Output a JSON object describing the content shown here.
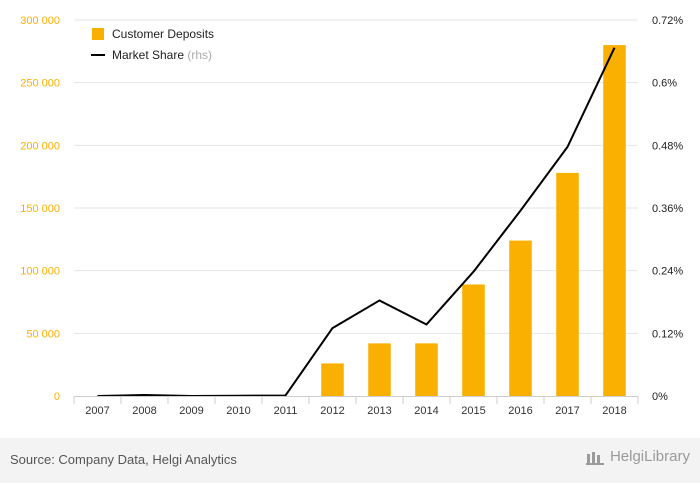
{
  "chart_data": {
    "type": "bar",
    "categories": [
      "2007",
      "2008",
      "2009",
      "2010",
      "2011",
      "2012",
      "2013",
      "2014",
      "2015",
      "2016",
      "2017",
      "2018"
    ],
    "series": [
      {
        "name": "Customer Deposits",
        "type": "bar",
        "axis": "left",
        "color": "#f9b000",
        "values": [
          0,
          0,
          0,
          0,
          0,
          26000,
          42000,
          42000,
          89000,
          124000,
          178000,
          280000
        ]
      },
      {
        "name": "Market Share",
        "name_suffix": "(rhs)",
        "type": "line",
        "axis": "right",
        "color": "#000000",
        "values": [
          0.0,
          0.002,
          0.0,
          0.0005,
          0.001,
          0.13,
          0.183,
          0.137,
          0.238,
          0.355,
          0.477,
          0.667
        ]
      }
    ],
    "left_axis": {
      "ylim": [
        0,
        300000
      ],
      "ticks": [
        0,
        50000,
        100000,
        150000,
        200000,
        250000,
        300000
      ],
      "tick_labels": [
        "0",
        "50 000",
        "100 000",
        "150 000",
        "200 000",
        "250 000",
        "300 000"
      ],
      "tick_color": "#f9b000"
    },
    "right_axis": {
      "ylim": [
        0,
        0.72
      ],
      "ticks": [
        0,
        0.12,
        0.24,
        0.36,
        0.48,
        0.6,
        0.72
      ],
      "tick_labels": [
        "0%",
        "0.12%",
        "0.24%",
        "0.36%",
        "0.48%",
        "0.6%",
        "0.72%"
      ],
      "tick_color": "#222222"
    },
    "grid": true,
    "legend_position": "top-left"
  },
  "footer": {
    "source": "Source: Company Data, Helgi Analytics",
    "brand": "HelgiLibrary"
  }
}
